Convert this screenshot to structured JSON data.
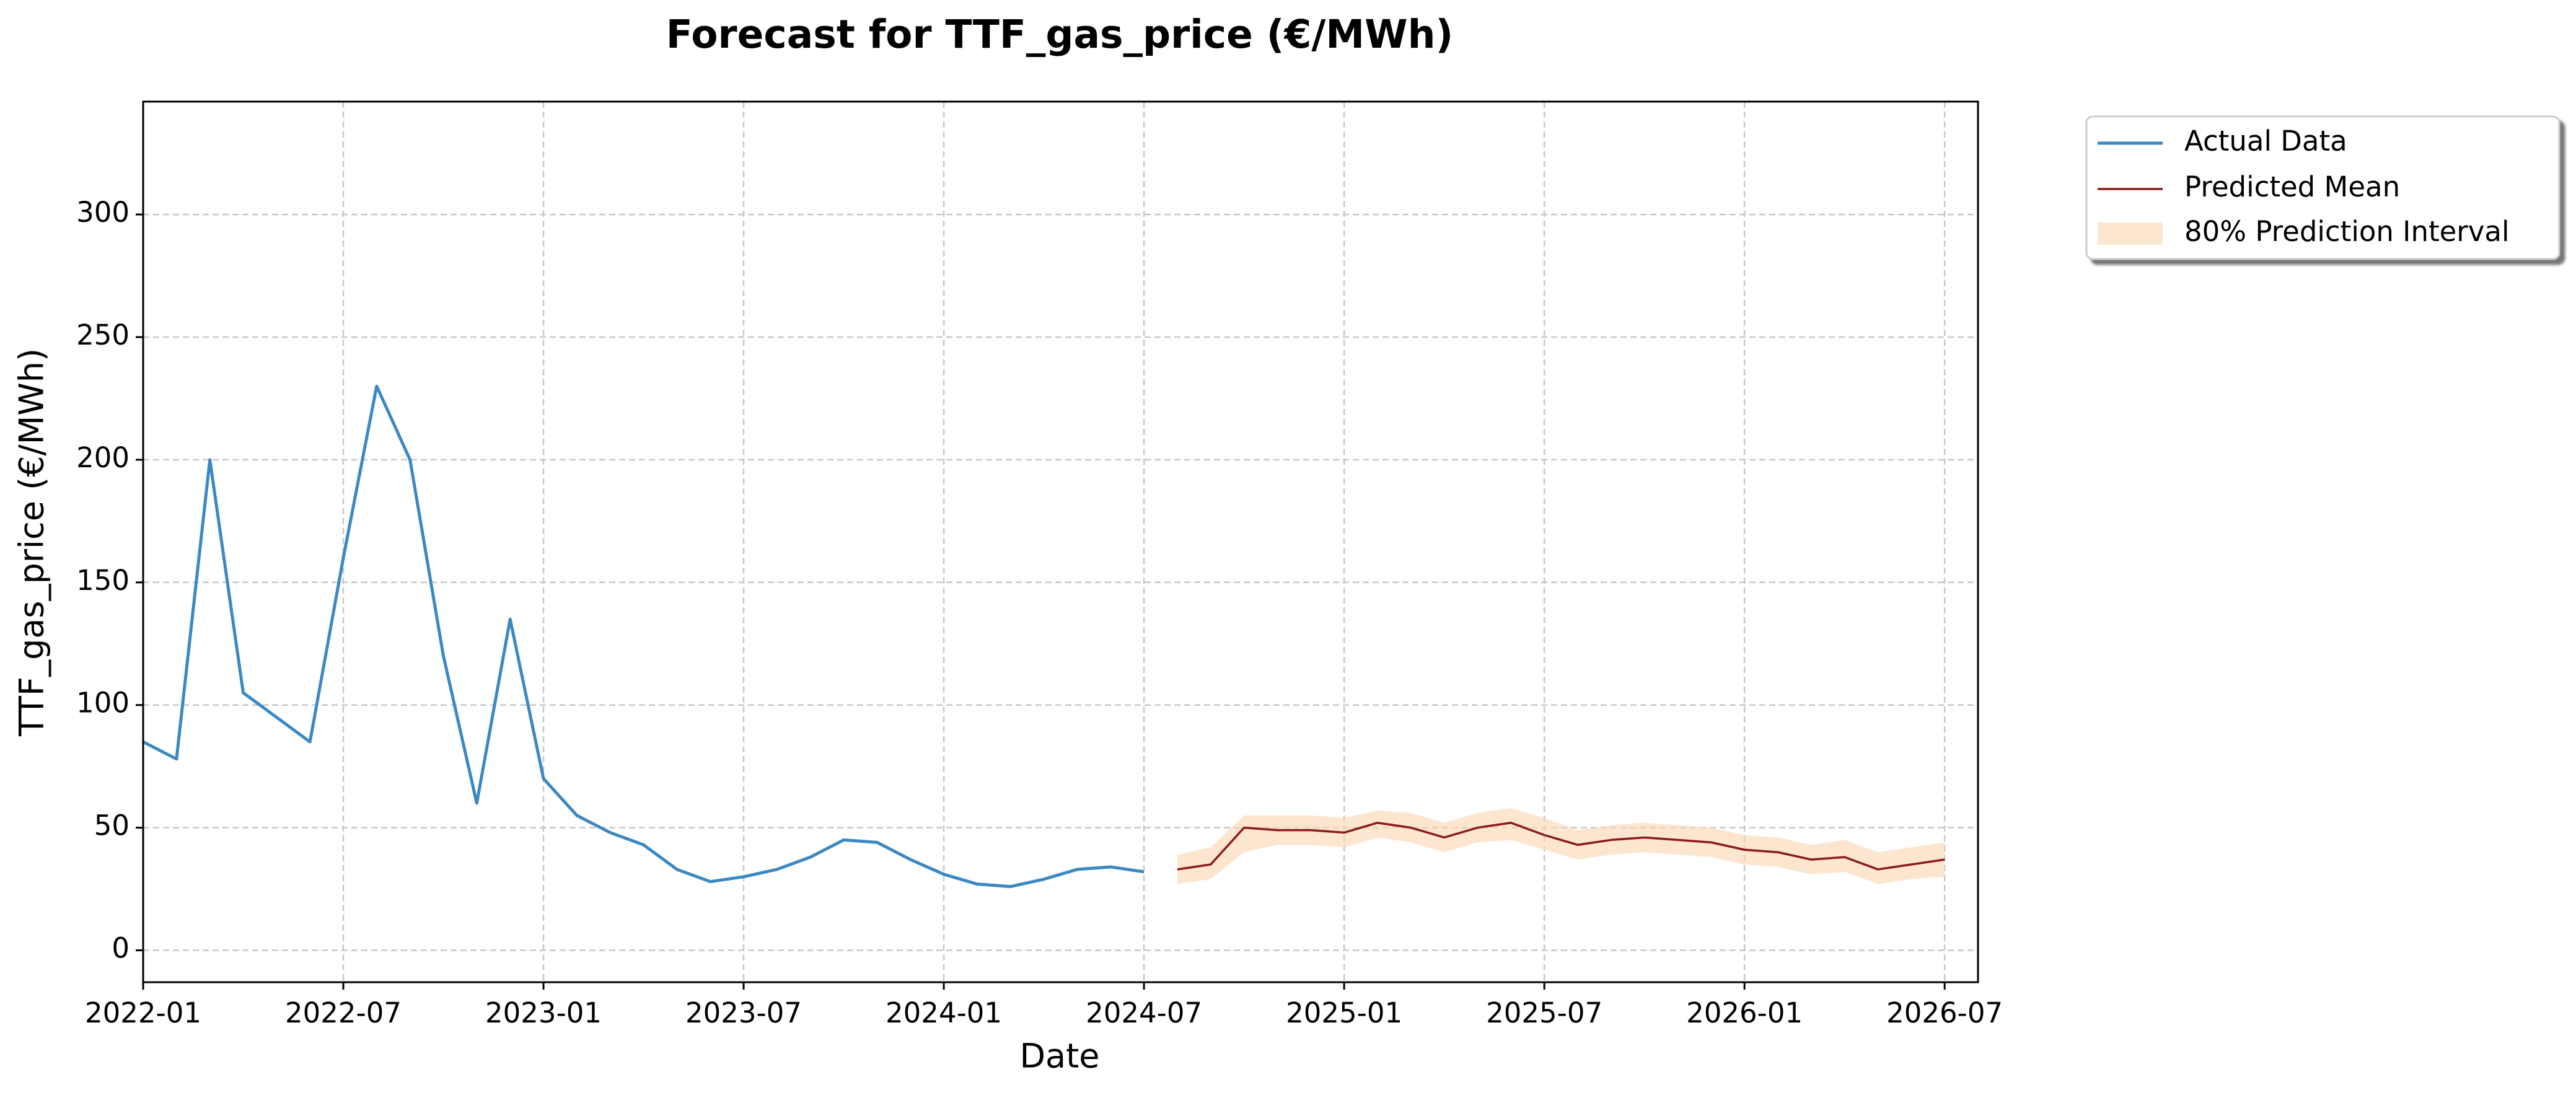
{
  "chart_data": {
    "type": "line",
    "title": "Forecast for TTF_gas_price (€/MWh)",
    "x_label": "Date",
    "y_label": "TTF_gas_price (€/MWh)",
    "xlim": [
      "2022-01",
      "2026-08"
    ],
    "xticks": [
      "2022-01",
      "2022-07",
      "2023-01",
      "2023-07",
      "2024-01",
      "2024-07",
      "2025-01",
      "2025-07",
      "2026-01",
      "2026-07"
    ],
    "ylim": [
      -13,
      346
    ],
    "yticks": [
      0,
      50,
      100,
      150,
      200,
      250,
      300
    ],
    "grid": true,
    "legend": "outside upper right",
    "series": [
      {
        "name": "Actual Data",
        "color": "#3b88c2",
        "x": [
          "2022-01",
          "2022-02",
          "2022-03",
          "2022-04",
          "2022-05",
          "2022-06",
          "2022-07",
          "2022-08",
          "2022-09",
          "2022-10",
          "2022-11",
          "2022-12",
          "2023-01",
          "2023-02",
          "2023-03",
          "2023-04",
          "2023-05",
          "2023-06",
          "2023-07",
          "2023-08",
          "2023-09",
          "2023-10",
          "2023-11",
          "2023-12",
          "2024-01",
          "2024-02",
          "2024-03",
          "2024-04",
          "2024-05",
          "2024-06",
          "2024-07"
        ],
        "values": [
          85,
          78,
          200,
          105,
          95,
          85,
          160,
          230,
          200,
          120,
          60,
          135,
          70,
          55,
          48,
          43,
          33,
          28,
          30,
          33,
          38,
          45,
          44,
          37,
          31,
          27,
          26,
          29,
          33,
          34,
          32
        ]
      },
      {
        "name": "Predicted Mean",
        "color": "#8b1a1a",
        "x": [
          "2024-08",
          "2024-09",
          "2024-10",
          "2024-11",
          "2024-12",
          "2025-01",
          "2025-02",
          "2025-03",
          "2025-04",
          "2025-05",
          "2025-06",
          "2025-07",
          "2025-08",
          "2025-09",
          "2025-10",
          "2025-11",
          "2025-12",
          "2026-01",
          "2026-02",
          "2026-03",
          "2026-04",
          "2026-05",
          "2026-06",
          "2026-07"
        ],
        "values": [
          33,
          35,
          50,
          49,
          49,
          48,
          52,
          50,
          46,
          50,
          52,
          47,
          43,
          45,
          46,
          45,
          44,
          41,
          40,
          37,
          38,
          33,
          35,
          37
        ]
      }
    ],
    "band": {
      "name": "80% Prediction Interval",
      "color": "#fbd6b0",
      "x": [
        "2024-08",
        "2024-09",
        "2024-10",
        "2024-11",
        "2024-12",
        "2025-01",
        "2025-02",
        "2025-03",
        "2025-04",
        "2025-05",
        "2025-06",
        "2025-07",
        "2025-08",
        "2025-09",
        "2025-10",
        "2025-11",
        "2025-12",
        "2026-01",
        "2026-02",
        "2026-03",
        "2026-04",
        "2026-05",
        "2026-06",
        "2026-07"
      ],
      "lower": [
        27,
        29,
        40,
        43,
        43,
        42,
        46,
        44,
        40,
        44,
        45,
        41,
        37,
        39,
        40,
        39,
        38,
        35,
        34,
        31,
        32,
        27,
        29,
        30
      ],
      "upper": [
        39,
        42,
        55,
        55,
        55,
        54,
        57,
        56,
        52,
        56,
        58,
        54,
        49,
        51,
        52,
        51,
        50,
        47,
        46,
        43,
        45,
        40,
        42,
        44
      ]
    }
  }
}
